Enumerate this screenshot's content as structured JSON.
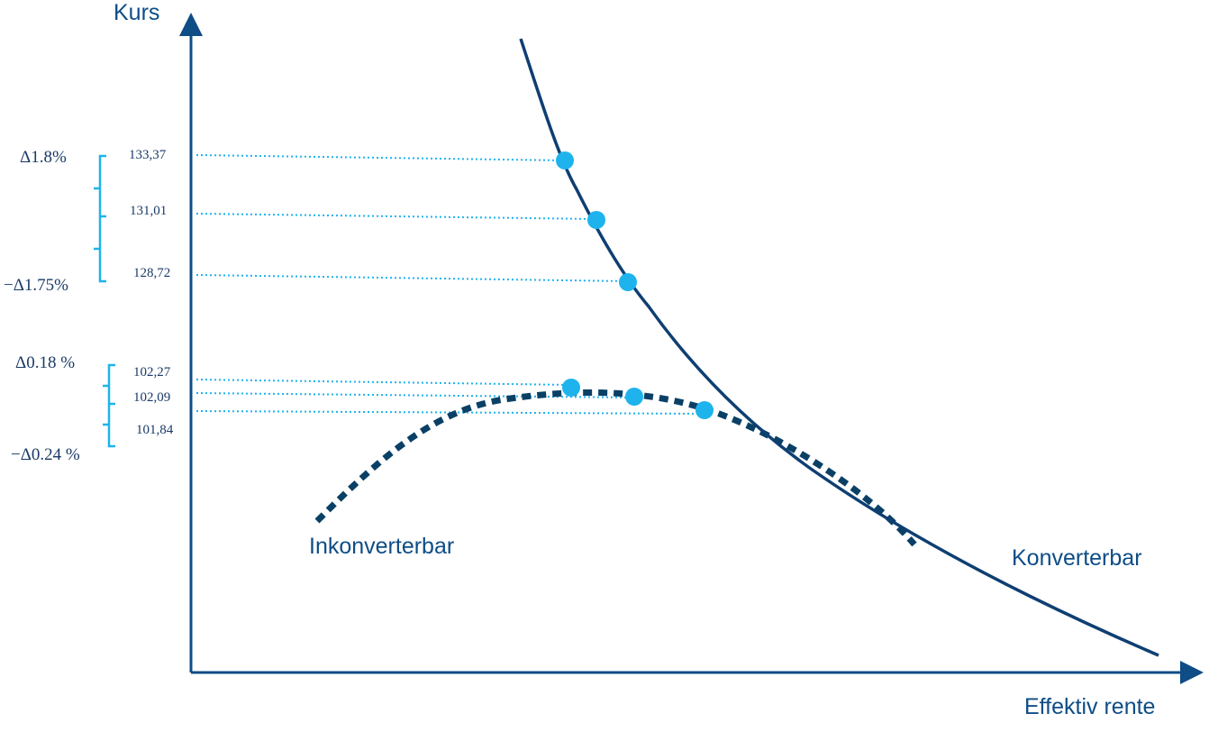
{
  "colors": {
    "axis": "#0e4d86",
    "convertible_curve": "#0e3f72",
    "non_convertible_curve": "#0a4066",
    "points": "#1eb3ec",
    "guides": "#1eb3ec",
    "text": "#1a3a66"
  },
  "axes": {
    "y_label": "Kurs",
    "x_label": "Effektiv rente"
  },
  "curves": {
    "convertible_label": "Konverterbar",
    "non_convertible_label": "Inkonverterbar"
  },
  "convertible_prices": [
    "133,37",
    "131,01",
    "128,72"
  ],
  "non_convertible_prices": [
    "102,27",
    "102,09",
    "101,84"
  ],
  "convertible_deltas": {
    "up": "Δ1.8%",
    "down": "−Δ1.75%"
  },
  "non_convertible_deltas": {
    "up": "Δ0.18 %",
    "down": "−Δ0.24 %"
  }
}
